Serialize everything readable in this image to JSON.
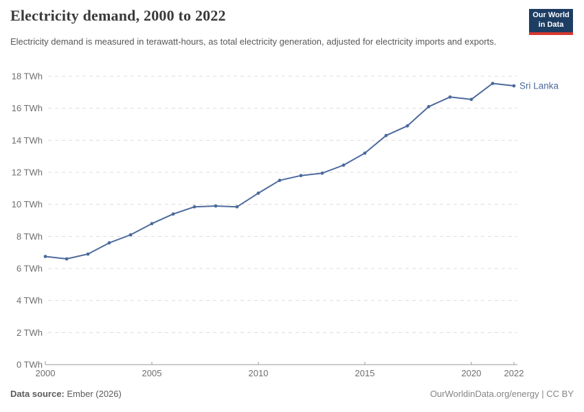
{
  "header": {
    "title": "Electricity demand, 2000 to 2022",
    "subtitle": "Electricity demand is measured in terawatt-hours, as total electricity generation, adjusted for electricity imports and exports.",
    "logo": {
      "line1": "Our World",
      "line2": "in Data"
    }
  },
  "chart_data": {
    "type": "line",
    "title": "Electricity demand, 2000 to 2022",
    "unit": "TWh",
    "x": [
      2000,
      2001,
      2002,
      2003,
      2004,
      2005,
      2006,
      2007,
      2008,
      2009,
      2010,
      2011,
      2012,
      2013,
      2014,
      2015,
      2016,
      2017,
      2018,
      2019,
      2020,
      2021,
      2022
    ],
    "series": [
      {
        "name": "Sri Lanka",
        "color": "#4C6A9C",
        "values": [
          6.75,
          6.6,
          6.9,
          7.6,
          8.1,
          8.8,
          9.4,
          9.85,
          9.9,
          9.85,
          10.7,
          11.5,
          11.8,
          11.95,
          12.45,
          13.2,
          14.3,
          14.9,
          16.1,
          16.7,
          16.55,
          17.55,
          17.4
        ]
      }
    ],
    "xlabel": "",
    "ylabel": "",
    "ylim": [
      0,
      18
    ],
    "yticks": [
      0,
      2,
      4,
      6,
      8,
      10,
      12,
      14,
      16,
      18
    ],
    "ytick_suffix": " TWh",
    "xticks": [
      2000,
      2005,
      2010,
      2015,
      2020,
      2022
    ],
    "grid": "horizontal-dashed",
    "legend_position": "end-of-line",
    "end_label": "Sri Lanka"
  },
  "footer": {
    "source_label": "Data source:",
    "source_value": " Ember (2026)",
    "credit": "OurWorldinData.org/energy | CC BY"
  },
  "colors": {
    "accent_line": "#4C6A9C",
    "grid": "#dcdcdc",
    "axis": "#999999",
    "tick_label": "#6e6e6e",
    "title": "#3a3a3a",
    "subtitle": "#575757",
    "logo_bg": "#1d3d63",
    "logo_stripe": "#d7382e",
    "footer_text": "#5a5a5a",
    "credit_text": "#858585"
  }
}
